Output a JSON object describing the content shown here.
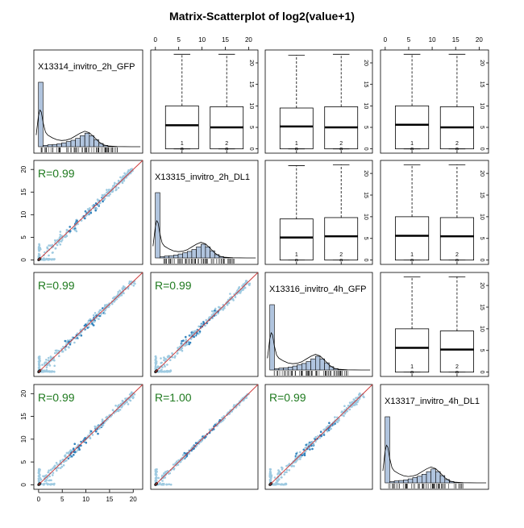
{
  "chart_data": {
    "type": "scatter",
    "title": "Matrix-Scatterplot of log2(value+1)",
    "variables": [
      "X13314_invitro_2h_GFP",
      "X13315_invitro_2h_DL1",
      "X13316_invitro_4h_GFP",
      "X13317_invitro_4h_DL1"
    ],
    "axis": {
      "range": [
        -1,
        22
      ],
      "ticks": [
        0,
        5,
        10,
        15,
        20
      ],
      "box_range": [
        -1,
        23
      ],
      "box_ticks": [
        0,
        5,
        10,
        15,
        20
      ],
      "box_categories": [
        "1",
        "2"
      ]
    },
    "correlations": [
      {
        "row": 2,
        "col": 1,
        "label": "R=0.99"
      },
      {
        "row": 3,
        "col": 1,
        "label": "R=0.99"
      },
      {
        "row": 3,
        "col": 2,
        "label": "R=0.99"
      },
      {
        "row": 4,
        "col": 1,
        "label": "R=0.99"
      },
      {
        "row": 4,
        "col": 2,
        "label": "R=1.00"
      },
      {
        "row": 4,
        "col": 3,
        "label": "R=0.99"
      }
    ],
    "boxplots": [
      {
        "row": 1,
        "col": 2,
        "boxes": [
          {
            "min": 0,
            "q1": 0,
            "median": 5.5,
            "q3": 10,
            "max": 22
          },
          {
            "min": 0,
            "q1": 0,
            "median": 5,
            "q3": 9.8,
            "max": 22
          }
        ]
      },
      {
        "row": 1,
        "col": 3,
        "boxes": [
          {
            "min": 0,
            "q1": 0,
            "median": 5.2,
            "q3": 9.5,
            "max": 21.8
          },
          {
            "min": 0,
            "q1": 0,
            "median": 5,
            "q3": 9.8,
            "max": 22
          }
        ]
      },
      {
        "row": 1,
        "col": 4,
        "boxes": [
          {
            "min": 0,
            "q1": 0,
            "median": 5.6,
            "q3": 10,
            "max": 22
          },
          {
            "min": 0,
            "q1": 0,
            "median": 5,
            "q3": 9.8,
            "max": 22
          }
        ]
      },
      {
        "row": 2,
        "col": 3,
        "boxes": [
          {
            "min": 0,
            "q1": 0,
            "median": 5.2,
            "q3": 9.5,
            "max": 21.8
          },
          {
            "min": 0,
            "q1": 0,
            "median": 5.5,
            "q3": 9.8,
            "max": 22
          }
        ]
      },
      {
        "row": 2,
        "col": 4,
        "boxes": [
          {
            "min": 0,
            "q1": 0,
            "median": 5.6,
            "q3": 10,
            "max": 22
          },
          {
            "min": 0,
            "q1": 0,
            "median": 5.5,
            "q3": 9.8,
            "max": 22
          }
        ]
      },
      {
        "row": 3,
        "col": 4,
        "boxes": [
          {
            "min": 0,
            "q1": 0,
            "median": 5.6,
            "q3": 10,
            "max": 22
          },
          {
            "min": 0,
            "q1": 0,
            "median": 5.2,
            "q3": 9.5,
            "max": 22
          }
        ]
      }
    ],
    "histogram": {
      "bin_width": 1,
      "bin_starts": [
        0,
        1,
        2,
        3,
        4,
        5,
        6,
        7,
        8,
        9,
        10,
        11,
        12,
        13,
        14,
        15,
        16
      ],
      "relative_heights": [
        1.0,
        0.02,
        0.03,
        0.035,
        0.045,
        0.06,
        0.08,
        0.1,
        0.13,
        0.17,
        0.21,
        0.17,
        0.11,
        0.05,
        0.02,
        0.008,
        0.003
      ],
      "density_curve": {
        "x": [
          -0.5,
          0,
          0.3,
          0.6,
          1,
          1.5,
          2,
          3,
          4,
          5,
          6,
          7,
          8,
          9,
          10,
          11,
          12,
          13,
          14,
          15,
          17,
          20,
          22
        ],
        "y": [
          0.3,
          0.8,
          0.95,
          0.9,
          0.62,
          0.38,
          0.3,
          0.23,
          0.18,
          0.16,
          0.17,
          0.21,
          0.28,
          0.35,
          0.4,
          0.36,
          0.25,
          0.13,
          0.05,
          0.02,
          0.005,
          0.001,
          0
        ]
      }
    },
    "colors": {
      "points_light": "#9ecae1",
      "points_dark": "#3182bd",
      "fit_line": "#cc3333",
      "histogram_fill": "#b0c4de",
      "correlation_text": "#1f7a1f",
      "density_line": "#000000"
    }
  }
}
